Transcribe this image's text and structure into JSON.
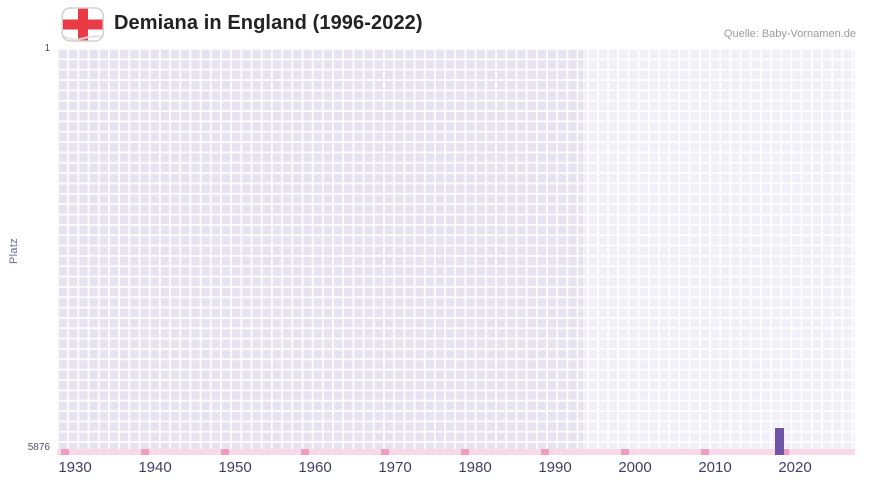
{
  "header": {
    "title": "Demiana in England (1996-2022)",
    "source": "Quelle: Baby-Vornamen.de"
  },
  "chart_data": {
    "type": "bar",
    "title": "Demiana in England (1996-2022)",
    "xlabel": "",
    "ylabel": "Platz",
    "x_axis": {
      "min": 1927.75,
      "max": 2027.5,
      "ticks": [
        1930,
        1940,
        1950,
        1960,
        1970,
        1980,
        1990,
        2000,
        2010,
        2020
      ]
    },
    "y_axis": {
      "top_label": "1",
      "bottom_label": "5876",
      "top_value": 1,
      "bottom_value": 5876,
      "inverted": true
    },
    "series": [
      {
        "name": "Platz",
        "points": [
          {
            "year": 2018,
            "rank": 5876
          }
        ]
      }
    ],
    "highlight_band": {
      "from": 1993.5,
      "to": 2027.5
    },
    "legend": null,
    "grid": true,
    "colors": {
      "bar": "#6f53a4",
      "plot_background": "#e6e2f0",
      "highlight_band": "#f0edf8",
      "axis_line": "#f8d9e7",
      "decade_marker": "#ef9cbe",
      "x_tick_label": "#3f3e66",
      "flag_cross_red": "#ea3a45"
    }
  }
}
